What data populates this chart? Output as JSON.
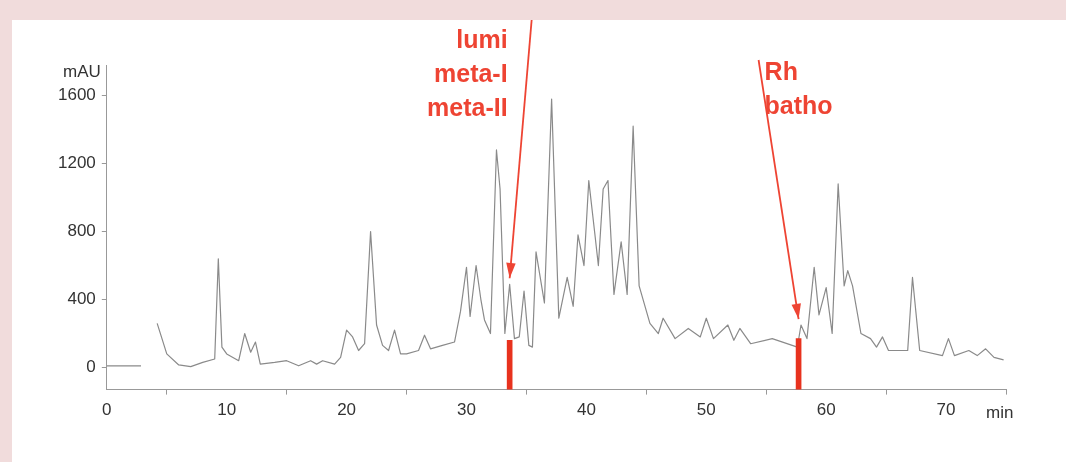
{
  "chart_data": {
    "type": "line",
    "xlabel": "min",
    "ylabel": "mAU",
    "xlim": [
      0,
      75
    ],
    "xticks": [
      0,
      10,
      20,
      30,
      40,
      50,
      60,
      70
    ],
    "ylim": [
      -130,
      1780
    ],
    "yticks": [
      0,
      400,
      800,
      1200,
      1600
    ],
    "grid": false,
    "legend": false,
    "marker": "none",
    "line_style": "solid",
    "series": [
      {
        "color": "#8a8a8a",
        "x": [
          0,
          2.85,
          2.95,
          3.8,
          4.2,
          5,
          6,
          7,
          8,
          9,
          9.3,
          9.6,
          10,
          11,
          11.5,
          12,
          12.4,
          12.8,
          14,
          15,
          16,
          17,
          17.5,
          18,
          19,
          19.5,
          20,
          20.5,
          21,
          21.5,
          22,
          22.5,
          23,
          23.5,
          24,
          24.5,
          25,
          26,
          26.5,
          27,
          28,
          29,
          29.5,
          30,
          30.3,
          30.8,
          31.2,
          31.5,
          32,
          32.5,
          32.8,
          33.2,
          33.6,
          34,
          34.4,
          34.8,
          35.2,
          35.5,
          35.8,
          36.5,
          37.1,
          37.7,
          38.4,
          38.9,
          39.3,
          39.8,
          40.2,
          40.7,
          41,
          41.4,
          41.8,
          42.3,
          42.9,
          43.4,
          43.9,
          44.4,
          45.3,
          46,
          46.4,
          47.4,
          48.5,
          49.5,
          50,
          50.6,
          51.8,
          52.3,
          52.8,
          53.7,
          55.5,
          57.6,
          57.9,
          58.4,
          59,
          59.4,
          60,
          60.5,
          61,
          61.5,
          61.8,
          62.2,
          62.9,
          63.7,
          64.2,
          64.7,
          65.2,
          66.8,
          67.2,
          67.8,
          69.7,
          70.2,
          70.7,
          71.9,
          72.6,
          73.3,
          74,
          74.8
        ],
        "values": [
          10,
          10,
          null,
          null,
          260,
          80,
          15,
          5,
          30,
          50,
          640,
          120,
          80,
          40,
          200,
          90,
          150,
          20,
          30,
          40,
          10,
          40,
          20,
          40,
          20,
          60,
          220,
          180,
          100,
          140,
          800,
          250,
          130,
          100,
          220,
          80,
          80,
          100,
          190,
          110,
          130,
          150,
          330,
          590,
          300,
          600,
          400,
          280,
          200,
          1280,
          1050,
          200,
          490,
          170,
          180,
          450,
          130,
          120,
          680,
          380,
          1580,
          290,
          530,
          360,
          780,
          600,
          1100,
          790,
          600,
          1050,
          1100,
          430,
          740,
          430,
          1420,
          480,
          260,
          200,
          290,
          170,
          230,
          180,
          290,
          170,
          250,
          160,
          230,
          140,
          170,
          120,
          250,
          170,
          590,
          310,
          470,
          200,
          1080,
          480,
          570,
          480,
          200,
          170,
          120,
          180,
          100,
          100,
          530,
          100,
          70,
          170,
          70,
          100,
          70,
          110,
          60,
          45
        ]
      },
      {
        "type": "bar",
        "color": "#e8321e",
        "x": [
          33.6,
          57.7
        ],
        "base": [
          -130,
          -130
        ],
        "values": [
          290,
          300
        ]
      }
    ],
    "annotations": [
      {
        "text": "lumi\nmeta-I\nmeta-II",
        "x": 33.6,
        "y": 490
      },
      {
        "text": "Rh\nbatho",
        "x": 57.7,
        "y": 250
      }
    ]
  }
}
